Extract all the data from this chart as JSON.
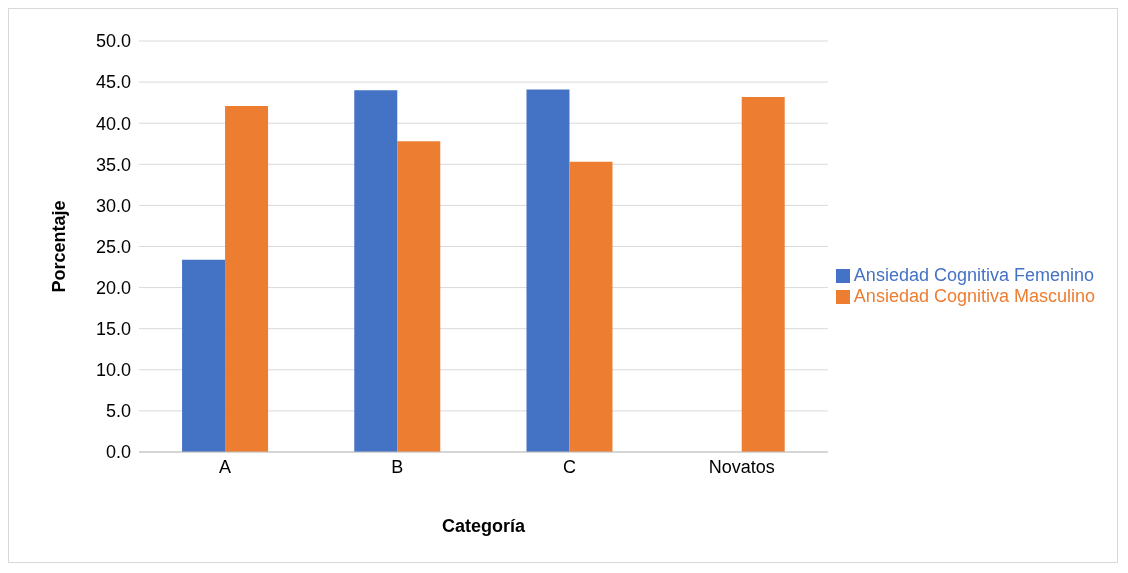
{
  "chart_data": {
    "type": "bar",
    "xlabel": "Categoría",
    "ylabel": "Porcentaje",
    "categories": [
      "A",
      "B",
      "C",
      "Novatos"
    ],
    "series": [
      {
        "name": "Ansiedad Cognitiva Femenino",
        "color": "#4472c4",
        "values": [
          23.4,
          44.0,
          44.1,
          null
        ]
      },
      {
        "name": "Ansiedad Cognitiva Masculino",
        "color": "#ed7d31",
        "values": [
          42.1,
          37.8,
          35.3,
          43.2
        ]
      }
    ],
    "ylim": [
      0,
      50
    ],
    "yticks": [
      {
        "value": 0,
        "label": "0.0"
      },
      {
        "value": 5,
        "label": "5.0"
      },
      {
        "value": 10,
        "label": "10.0"
      },
      {
        "value": 15,
        "label": "15.0"
      },
      {
        "value": 20,
        "label": "20.0"
      },
      {
        "value": 25,
        "label": "25.0"
      },
      {
        "value": 30,
        "label": "30.0"
      },
      {
        "value": 35,
        "label": "35.0"
      },
      {
        "value": 40,
        "label": "40.0"
      },
      {
        "value": 45,
        "label": "45.0"
      },
      {
        "value": 50,
        "label": "50.0"
      }
    ],
    "grid": "y",
    "legend": "right"
  }
}
